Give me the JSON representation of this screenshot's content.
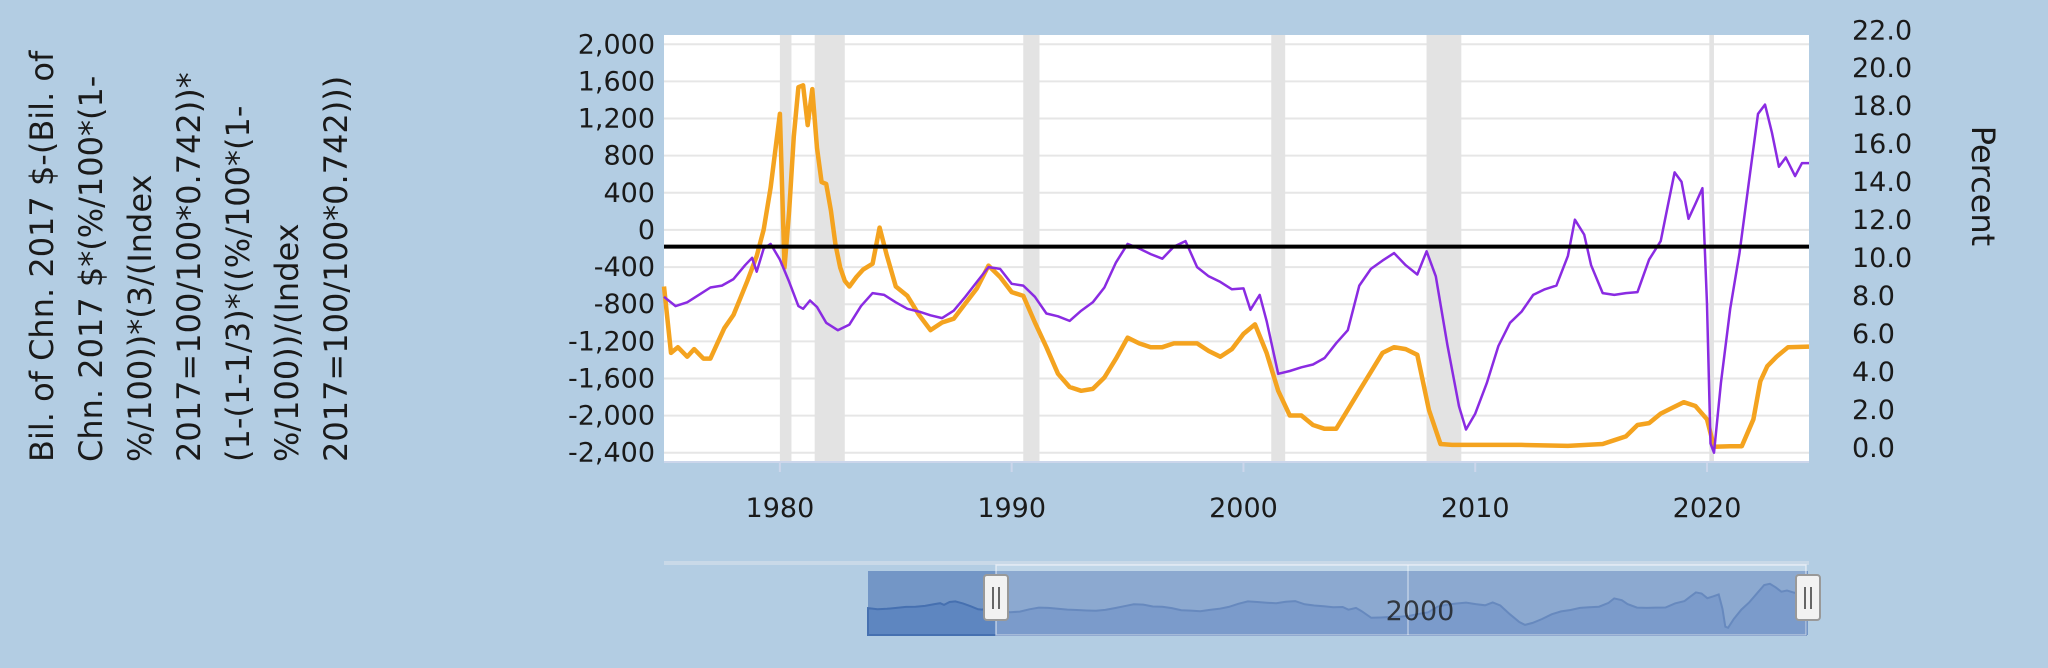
{
  "chart_data": {
    "type": "line",
    "title": "",
    "left_axis": {
      "title_lines": [
        "Bil. of Chn. 2017 $-(Bil. of",
        "Chn. 2017 $*(%/100*(1-",
        "%/100))*(3/(Index",
        "2017=100/100*0.742))*",
        "(1-(1-1/3)*((%/100*(1-",
        "%/100))/(Index",
        "2017=100/100*0.742)))"
      ],
      "ticks": [
        "2,000",
        "1,600",
        "1,200",
        "800",
        "400",
        "0",
        "-400",
        "-800",
        "-1,200",
        "-1,600",
        "-2,000",
        "-2,400"
      ],
      "tick_values": [
        2000,
        1600,
        1200,
        800,
        400,
        0,
        -400,
        -800,
        -1200,
        -1600,
        -2000,
        -2400
      ],
      "range": [
        -2500,
        2100
      ]
    },
    "right_axis": {
      "title": "Percent",
      "ticks": [
        "22.0",
        "20.0",
        "18.0",
        "16.0",
        "14.0",
        "12.0",
        "10.0",
        "8.0",
        "6.0",
        "4.0",
        "2.0",
        "0.0"
      ],
      "tick_values": [
        22,
        20,
        18,
        16,
        14,
        12,
        10,
        8,
        6,
        4,
        2,
        0
      ],
      "range": [
        -0.75,
        21.75
      ]
    },
    "x_axis": {
      "ticks": [
        "1980",
        "1990",
        "2000",
        "2010",
        "2020"
      ],
      "tick_values": [
        1980,
        1990,
        2000,
        2010,
        2020
      ],
      "range": [
        1975.0,
        2024.4
      ]
    },
    "zero_line_value": -180,
    "recessions": [
      [
        1980.0,
        1980.5
      ],
      [
        1981.5,
        1982.8
      ],
      [
        1990.5,
        1991.2
      ],
      [
        2001.2,
        2001.8
      ],
      [
        2007.9,
        2009.4
      ],
      [
        2020.1,
        2020.3
      ]
    ],
    "series": [
      {
        "axis": "left",
        "color": "#8a2be2",
        "x": [
          1975.0,
          1975.5,
          1976.0,
          1976.5,
          1977.0,
          1977.5,
          1978.0,
          1978.5,
          1978.8,
          1979.0,
          1979.3,
          1979.6,
          1980.0,
          1980.4,
          1980.8,
          1981.0,
          1981.3,
          1981.6,
          1982.0,
          1982.5,
          1983.0,
          1983.5,
          1984.0,
          1984.5,
          1985.0,
          1985.5,
          1986.0,
          1986.5,
          1987.0,
          1987.5,
          1988.0,
          1988.5,
          1989.0,
          1989.5,
          1990.0,
          1990.5,
          1991.0,
          1991.5,
          1992.0,
          1992.5,
          1993.0,
          1993.5,
          1994.0,
          1994.5,
          1995.0,
          1995.5,
          1996.0,
          1996.5,
          1997.0,
          1997.5,
          1998.0,
          1998.5,
          1999.0,
          1999.5,
          2000.0,
          2000.3,
          2000.7,
          2001.0,
          2001.5,
          2002.0,
          2002.5,
          2003.0,
          2003.5,
          2004.0,
          2004.5,
          2005.0,
          2005.5,
          2006.0,
          2006.5,
          2007.0,
          2007.5,
          2007.9,
          2008.3,
          2008.8,
          2009.3,
          2009.6,
          2010.0,
          2010.5,
          2011.0,
          2011.5,
          2012.0,
          2012.5,
          2013.0,
          2013.5,
          2014.0,
          2014.3,
          2014.7,
          2015.0,
          2015.5,
          2016.0,
          2016.5,
          2017.0,
          2017.5,
          2018.0,
          2018.3,
          2018.6,
          2018.9,
          2019.2,
          2019.5,
          2019.8,
          2020.0,
          2020.15,
          2020.3,
          2020.6,
          2021.0,
          2021.4,
          2021.8,
          2022.2,
          2022.5,
          2022.8,
          2023.1,
          2023.4,
          2023.8,
          2024.1,
          2024.4
        ],
        "y": [
          -720,
          -820,
          -780,
          -700,
          -620,
          -600,
          -530,
          -380,
          -300,
          -450,
          -200,
          -150,
          -320,
          -560,
          -820,
          -850,
          -760,
          -830,
          -1000,
          -1080,
          -1020,
          -820,
          -680,
          -700,
          -780,
          -850,
          -880,
          -920,
          -950,
          -870,
          -720,
          -560,
          -400,
          -420,
          -580,
          -600,
          -720,
          -900,
          -930,
          -980,
          -870,
          -780,
          -620,
          -350,
          -150,
          -200,
          -260,
          -310,
          -180,
          -120,
          -400,
          -500,
          -560,
          -640,
          -630,
          -860,
          -700,
          -980,
          -1550,
          -1520,
          -1480,
          -1450,
          -1380,
          -1220,
          -1080,
          -600,
          -420,
          -330,
          -250,
          -380,
          -480,
          -230,
          -500,
          -1240,
          -1900,
          -2150,
          -1980,
          -1650,
          -1250,
          -1000,
          -880,
          -700,
          -640,
          -600,
          -280,
          110,
          -50,
          -380,
          -680,
          -700,
          -680,
          -670,
          -320,
          -120,
          250,
          620,
          520,
          120,
          280,
          450,
          -800,
          -2300,
          -2400,
          -1650,
          -850,
          -250,
          500,
          1250,
          1350,
          1050,
          680,
          780,
          580,
          720,
          720
        ]
      },
      {
        "axis": "right",
        "color": "#f4a31f",
        "x": [
          1975.0,
          1975.3,
          1975.6,
          1976.0,
          1976.3,
          1976.7,
          1977.0,
          1977.3,
          1977.6,
          1978.0,
          1978.3,
          1978.6,
          1979.0,
          1979.3,
          1979.6,
          1980.0,
          1980.2,
          1980.4,
          1980.6,
          1980.8,
          1981.0,
          1981.2,
          1981.4,
          1981.6,
          1981.8,
          1982.0,
          1982.2,
          1982.4,
          1982.6,
          1982.8,
          1983.0,
          1983.3,
          1983.6,
          1984.0,
          1984.3,
          1984.6,
          1985.0,
          1985.5,
          1986.0,
          1986.5,
          1987.0,
          1987.5,
          1988.0,
          1988.5,
          1989.0,
          1989.5,
          1990.0,
          1990.5,
          1991.0,
          1991.5,
          1992.0,
          1992.5,
          1993.0,
          1993.5,
          1994.0,
          1994.5,
          1995.0,
          1995.5,
          1996.0,
          1996.5,
          1997.0,
          1997.5,
          1998.0,
          1998.5,
          1999.0,
          1999.5,
          2000.0,
          2000.5,
          2001.0,
          2001.5,
          2002.0,
          2002.5,
          2003.0,
          2003.5,
          2004.0,
          2004.5,
          2005.0,
          2005.5,
          2006.0,
          2006.5,
          2007.0,
          2007.5,
          2008.0,
          2008.5,
          2009.0,
          2010.0,
          2012.0,
          2014.0,
          2015.5,
          2016.0,
          2016.5,
          2017.0,
          2017.5,
          2018.0,
          2018.5,
          2019.0,
          2019.5,
          2020.0,
          2020.3,
          2021.0,
          2021.5,
          2022.0,
          2022.3,
          2022.6,
          2023.0,
          2023.5,
          2024.4
        ],
        "y": [
          8.5,
          5.0,
          5.3,
          4.8,
          5.2,
          4.7,
          4.7,
          5.5,
          6.3,
          7.0,
          7.9,
          8.8,
          10.1,
          11.5,
          13.7,
          17.6,
          9.5,
          12.5,
          16.4,
          19.0,
          19.1,
          17.0,
          18.9,
          15.8,
          14.0,
          13.9,
          12.5,
          10.7,
          9.5,
          8.8,
          8.5,
          9.0,
          9.4,
          9.7,
          11.6,
          10.2,
          8.5,
          8.0,
          7.0,
          6.2,
          6.6,
          6.8,
          7.6,
          8.4,
          9.6,
          9.0,
          8.2,
          8.0,
          6.6,
          5.3,
          3.9,
          3.2,
          3.0,
          3.1,
          3.7,
          4.7,
          5.8,
          5.5,
          5.3,
          5.3,
          5.5,
          5.5,
          5.5,
          5.1,
          4.8,
          5.2,
          6.0,
          6.5,
          5.0,
          3.0,
          1.7,
          1.7,
          1.2,
          1.0,
          1.0,
          2.0,
          3.0,
          4.0,
          5.0,
          5.3,
          5.2,
          4.9,
          2.0,
          0.2,
          0.15,
          0.15,
          0.15,
          0.1,
          0.2,
          0.4,
          0.6,
          1.2,
          1.3,
          1.8,
          2.1,
          2.4,
          2.2,
          1.5,
          0.05,
          0.08,
          0.08,
          1.5,
          3.5,
          4.3,
          4.8,
          5.3,
          5.33
        ]
      }
    ],
    "navigator": {
      "labels": [
        "2000"
      ],
      "range_selected": [
        1975.0,
        2024.4
      ]
    }
  }
}
